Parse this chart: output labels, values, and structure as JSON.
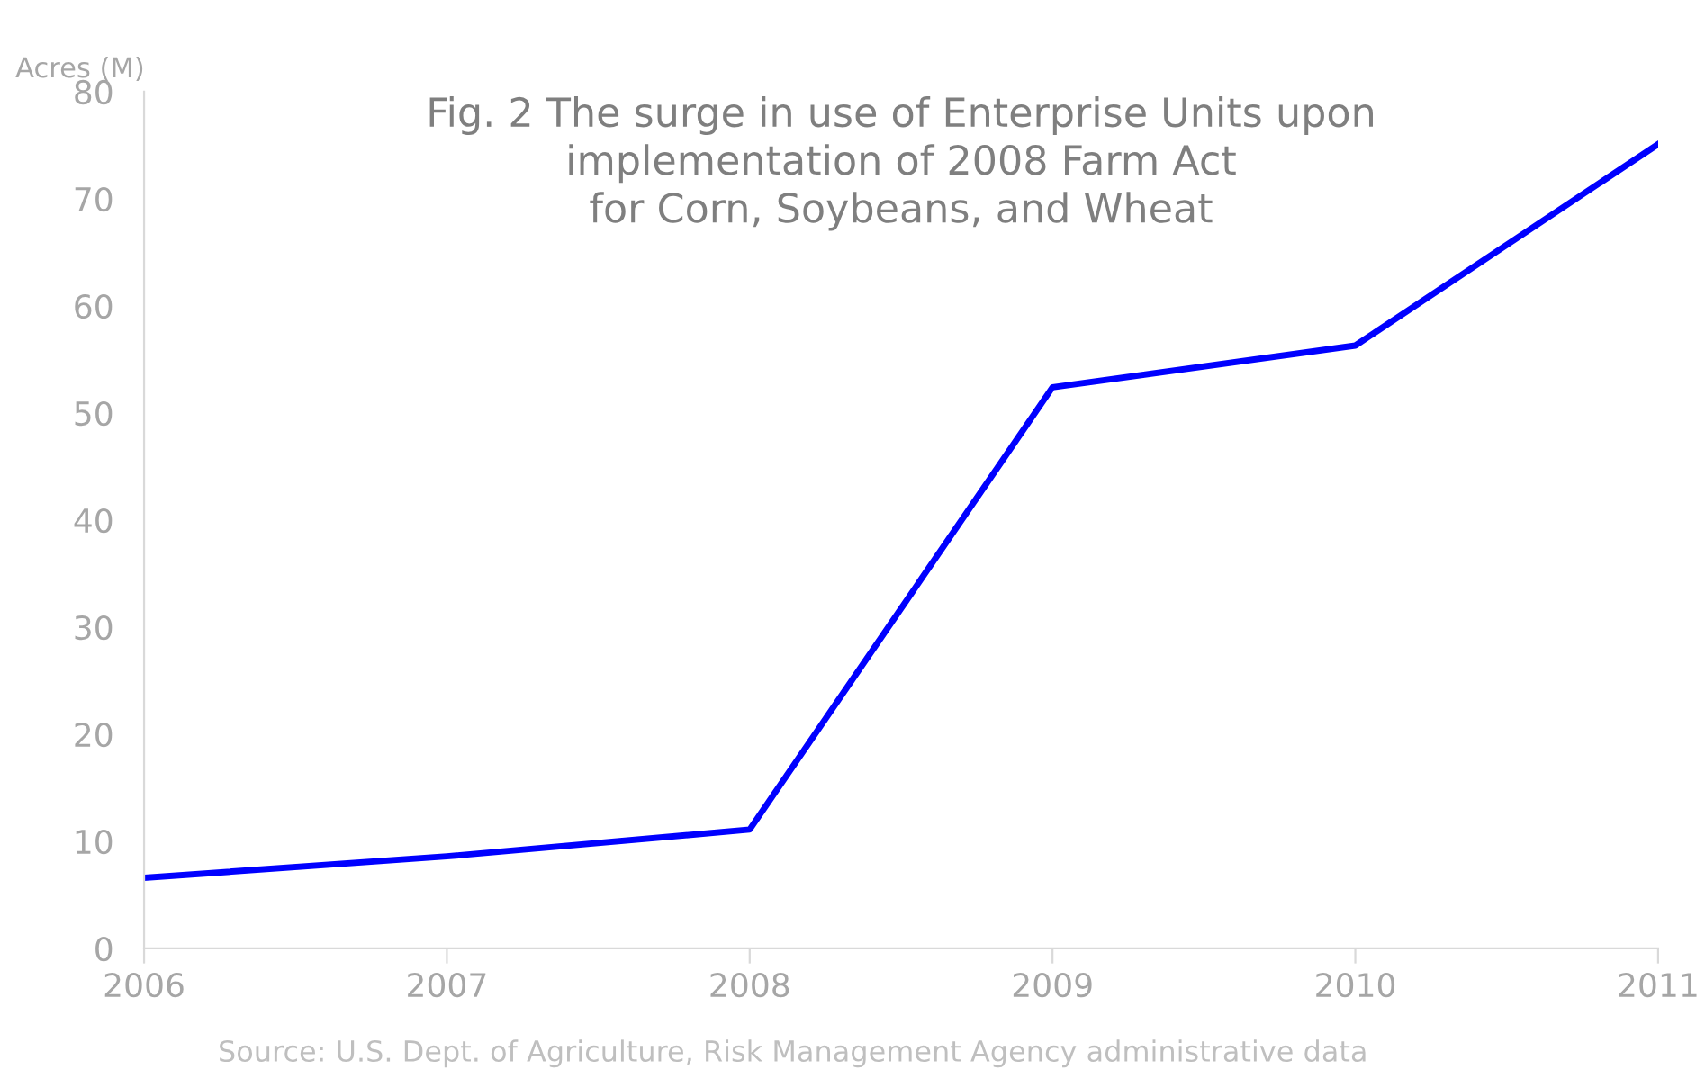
{
  "chart_data": {
    "type": "line",
    "title": "Fig. 2 The surge in use of Enterprise Units upon\nimplementation of 2008 Farm Act\nfor Corn, Soybeans, and Wheat",
    "ylabel": "Acres (M)",
    "x": [
      2006,
      2007,
      2008,
      2009,
      2010,
      2011
    ],
    "series": [
      {
        "color": "#0000ff",
        "values": [
          6.6,
          8.6,
          11.1,
          52.4,
          56.3,
          75.1
        ]
      }
    ],
    "xlim": [
      2006,
      2011
    ],
    "xticks": [
      2006,
      2007,
      2008,
      2009,
      2010,
      2011
    ],
    "ylim": [
      0,
      80
    ],
    "yticks": [
      0,
      10,
      20,
      30,
      40,
      50,
      60,
      70,
      80
    ],
    "grid": false,
    "legend": false,
    "marker": "none",
    "line_style": "solid",
    "annotations": [
      "Source: U.S. Dept. of Agriculture, Risk Management Agency administrative data"
    ]
  }
}
